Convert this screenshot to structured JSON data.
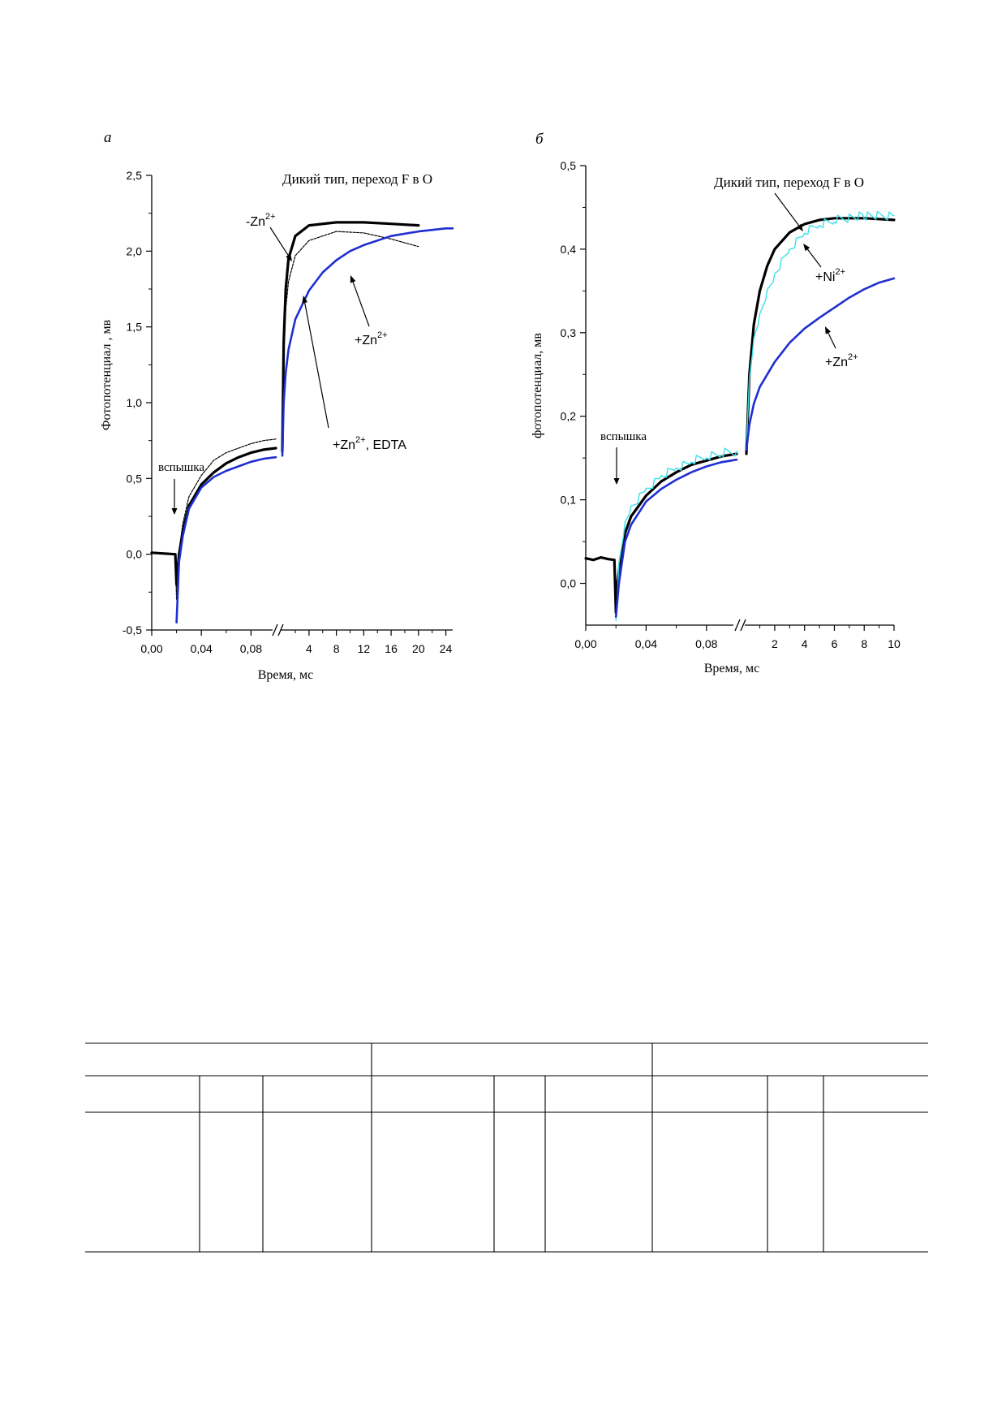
{
  "chart_data": [
    {
      "panel_label": "а",
      "type": "line",
      "title": "Дикий тип, переход F в O",
      "xlabel": "Время, мс",
      "ylabel": "Фотопотенциал , мв",
      "ylim": [
        -0.5,
        2.5
      ],
      "y_ticks": [
        "-0,5",
        "0,0",
        "0,5",
        "1,0",
        "1,5",
        "2,0",
        "2,5"
      ],
      "x_segments": [
        {
          "range": [
            0.0,
            0.1
          ],
          "ticks": [
            "0,00",
            "0,04",
            "0,08"
          ]
        },
        {
          "range": [
            0.1,
            25
          ],
          "ticks": [
            "4",
            "8",
            "12",
            "16",
            "20",
            "24"
          ]
        }
      ],
      "axis_break": "//",
      "flash_label": "вспышка",
      "flash_x": 0.02,
      "annotations": [
        "-Zn",
        "2+",
        "+Zn",
        "2+",
        "+Zn",
        "2+",
        ", EDTA"
      ],
      "series": [
        {
          "color": "#000000",
          "style": "thick",
          "early": [
            [
              0.0,
              0.01
            ],
            [
              0.019,
              0.0
            ],
            [
              0.02,
              -0.2
            ],
            [
              0.022,
              0.0
            ],
            [
              0.025,
              0.15
            ],
            [
              0.03,
              0.32
            ],
            [
              0.04,
              0.46
            ],
            [
              0.05,
              0.54
            ],
            [
              0.06,
              0.6
            ],
            [
              0.07,
              0.64
            ],
            [
              0.08,
              0.67
            ],
            [
              0.09,
              0.69
            ],
            [
              0.1,
              0.7
            ]
          ],
          "late": [
            [
              0.1,
              0.68
            ],
            [
              0.3,
              1.4
            ],
            [
              0.6,
              1.75
            ],
            [
              1.0,
              1.95
            ],
            [
              2.0,
              2.1
            ],
            [
              4.0,
              2.17
            ],
            [
              8.0,
              2.19
            ],
            [
              12.0,
              2.19
            ],
            [
              16.0,
              2.18
            ],
            [
              20.0,
              2.17
            ]
          ]
        },
        {
          "color": "#000000",
          "style": "thin-dotted",
          "early": [
            [
              0.0,
              0.01
            ],
            [
              0.019,
              0.0
            ],
            [
              0.02,
              -0.3
            ],
            [
              0.022,
              0.02
            ],
            [
              0.025,
              0.2
            ],
            [
              0.03,
              0.38
            ],
            [
              0.04,
              0.52
            ],
            [
              0.05,
              0.62
            ],
            [
              0.06,
              0.67
            ],
            [
              0.07,
              0.7
            ],
            [
              0.08,
              0.73
            ],
            [
              0.09,
              0.75
            ],
            [
              0.1,
              0.76
            ]
          ],
          "late": [
            [
              0.1,
              0.7
            ],
            [
              0.3,
              1.3
            ],
            [
              0.6,
              1.62
            ],
            [
              1.0,
              1.8
            ],
            [
              2.0,
              1.97
            ],
            [
              4.0,
              2.07
            ],
            [
              8.0,
              2.13
            ],
            [
              12.0,
              2.12
            ],
            [
              16.0,
              2.08
            ],
            [
              20.0,
              2.03
            ]
          ]
        },
        {
          "color": "#1f2fd0",
          "style": "medium",
          "early": [
            [
              0.02,
              -0.45
            ],
            [
              0.022,
              -0.05
            ],
            [
              0.025,
              0.12
            ],
            [
              0.03,
              0.3
            ],
            [
              0.04,
              0.44
            ],
            [
              0.05,
              0.51
            ],
            [
              0.06,
              0.55
            ],
            [
              0.07,
              0.58
            ],
            [
              0.08,
              0.61
            ],
            [
              0.09,
              0.63
            ],
            [
              0.1,
              0.64
            ]
          ],
          "late": [
            [
              0.1,
              0.65
            ],
            [
              0.3,
              1.0
            ],
            [
              0.6,
              1.2
            ],
            [
              1.0,
              1.35
            ],
            [
              2.0,
              1.55
            ],
            [
              4.0,
              1.74
            ],
            [
              6.0,
              1.86
            ],
            [
              8.0,
              1.94
            ],
            [
              10.0,
              2.0
            ],
            [
              12.0,
              2.04
            ],
            [
              16.0,
              2.1
            ],
            [
              20.0,
              2.13
            ],
            [
              24.0,
              2.15
            ],
            [
              25.0,
              2.15
            ]
          ]
        }
      ]
    },
    {
      "panel_label": "б",
      "type": "line",
      "title": "Дикий тип, переход F в O",
      "xlabel": "Время, мс",
      "ylabel": "фотопотенциал, мв",
      "ylim": [
        -0.05,
        0.5
      ],
      "y_ticks": [
        "0,0",
        "0,1",
        "0,2",
        "0,3",
        "0,4",
        "0,5"
      ],
      "x_segments": [
        {
          "range": [
            0.0,
            0.1
          ],
          "ticks": [
            "0,00",
            "0,04",
            "0,08"
          ]
        },
        {
          "range": [
            0.1,
            10
          ],
          "ticks": [
            "2",
            "4",
            "6",
            "8",
            "10"
          ]
        }
      ],
      "axis_break": "//",
      "flash_label": "вспышка",
      "flash_x": 0.02,
      "annotations": [
        "+Ni",
        "2+",
        "+Zn",
        "2+"
      ],
      "series": [
        {
          "color": "#000000",
          "style": "thick",
          "early": [
            [
              0.0,
              0.03
            ],
            [
              0.005,
              0.028
            ],
            [
              0.01,
              0.031
            ],
            [
              0.015,
              0.029
            ],
            [
              0.019,
              0.028
            ],
            [
              0.02,
              -0.035
            ],
            [
              0.021,
              0.0
            ],
            [
              0.023,
              0.03
            ],
            [
              0.026,
              0.06
            ],
            [
              0.03,
              0.08
            ],
            [
              0.04,
              0.105
            ],
            [
              0.05,
              0.122
            ],
            [
              0.06,
              0.133
            ],
            [
              0.07,
              0.142
            ],
            [
              0.08,
              0.147
            ],
            [
              0.09,
              0.152
            ],
            [
              0.1,
              0.155
            ]
          ],
          "late": [
            [
              0.1,
              0.155
            ],
            [
              0.3,
              0.25
            ],
            [
              0.6,
              0.31
            ],
            [
              1.0,
              0.35
            ],
            [
              1.5,
              0.38
            ],
            [
              2.0,
              0.4
            ],
            [
              3.0,
              0.42
            ],
            [
              4.0,
              0.43
            ],
            [
              5.0,
              0.435
            ],
            [
              6.0,
              0.437
            ],
            [
              8.0,
              0.437
            ],
            [
              10.0,
              0.435
            ]
          ]
        },
        {
          "color": "#3ce0e8",
          "style": "noisy",
          "early": [
            [
              0.02,
              -0.05
            ],
            [
              0.022,
              0.02
            ],
            [
              0.026,
              0.07
            ],
            [
              0.03,
              0.09
            ],
            [
              0.04,
              0.112
            ],
            [
              0.05,
              0.128
            ],
            [
              0.06,
              0.138
            ],
            [
              0.07,
              0.146
            ],
            [
              0.08,
              0.152
            ],
            [
              0.09,
              0.156
            ],
            [
              0.1,
              0.158
            ]
          ],
          "late": [
            [
              0.1,
              0.158
            ],
            [
              0.3,
              0.24
            ],
            [
              0.6,
              0.29
            ],
            [
              1.0,
              0.32
            ],
            [
              1.5,
              0.35
            ],
            [
              2.0,
              0.37
            ],
            [
              3.0,
              0.4
            ],
            [
              4.0,
              0.42
            ],
            [
              5.0,
              0.43
            ],
            [
              6.0,
              0.435
            ],
            [
              8.0,
              0.44
            ],
            [
              10.0,
              0.44
            ]
          ]
        },
        {
          "color": "#1f2fd0",
          "style": "medium",
          "early": [
            [
              0.02,
              -0.04
            ],
            [
              0.022,
              0.0
            ],
            [
              0.026,
              0.05
            ],
            [
              0.03,
              0.07
            ],
            [
              0.04,
              0.098
            ],
            [
              0.05,
              0.113
            ],
            [
              0.06,
              0.124
            ],
            [
              0.07,
              0.133
            ],
            [
              0.08,
              0.14
            ],
            [
              0.09,
              0.145
            ],
            [
              0.1,
              0.148
            ]
          ],
          "late": [
            [
              0.1,
              0.16
            ],
            [
              0.3,
              0.19
            ],
            [
              0.6,
              0.215
            ],
            [
              1.0,
              0.235
            ],
            [
              2.0,
              0.265
            ],
            [
              3.0,
              0.288
            ],
            [
              4.0,
              0.305
            ],
            [
              5.0,
              0.318
            ],
            [
              6.0,
              0.33
            ],
            [
              7.0,
              0.342
            ],
            [
              8.0,
              0.352
            ],
            [
              9.0,
              0.36
            ],
            [
              10.0,
              0.365
            ]
          ]
        }
      ]
    }
  ],
  "table": {
    "header_row_1": [
      "",
      "",
      ""
    ],
    "header_row_2": [
      "",
      "",
      "",
      "",
      "",
      "",
      "",
      "",
      ""
    ],
    "body_row": [
      "",
      "",
      "",
      "",
      "",
      "",
      "",
      "",
      ""
    ]
  }
}
